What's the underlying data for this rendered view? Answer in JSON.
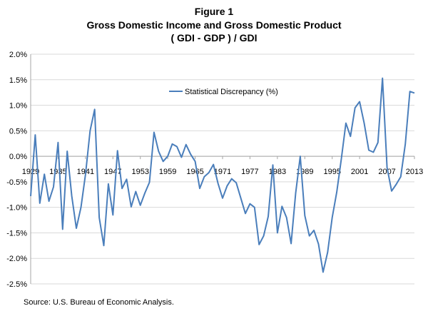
{
  "chart_data": {
    "type": "line",
    "title_lines": [
      "Figure 1",
      "Gross Domestic Income and Gross Domestic Product",
      "( GDI - GDP ) / GDI"
    ],
    "source": "Source: U.S. Bureau of Economic Analysis.",
    "xlabel": "",
    "ylabel": "",
    "ylim": [
      -2.5,
      2.0
    ],
    "xlim": [
      1929,
      2013
    ],
    "y_ticks": [
      "2.0%",
      "1.5%",
      "1.0%",
      "0.5%",
      "0.0%",
      "-0.5%",
      "-1.0%",
      "-1.5%",
      "-2.0%",
      "-2.5%"
    ],
    "y_tick_values": [
      2.0,
      1.5,
      1.0,
      0.5,
      0.0,
      -0.5,
      -1.0,
      -1.5,
      -2.0,
      -2.5
    ],
    "x_ticks": [
      "1929",
      "1935",
      "1941",
      "1947",
      "1953",
      "1959",
      "1965",
      "1971",
      "1977",
      "1983",
      "1989",
      "1995",
      "2001",
      "2007",
      "2013"
    ],
    "x_tick_values": [
      1929,
      1935,
      1941,
      1947,
      1953,
      1959,
      1965,
      1971,
      1977,
      1983,
      1989,
      1995,
      2001,
      2007,
      2013
    ],
    "grid": "horizontal",
    "legend_position": "top-left",
    "line_color": "#4a7ebb",
    "series": [
      {
        "name": "Statistical Discrepancy (%)",
        "x": [
          1929,
          1930,
          1931,
          1932,
          1933,
          1934,
          1935,
          1936,
          1937,
          1938,
          1939,
          1940,
          1941,
          1942,
          1943,
          1944,
          1945,
          1946,
          1947,
          1948,
          1949,
          1950,
          1951,
          1952,
          1953,
          1954,
          1955,
          1956,
          1957,
          1958,
          1959,
          1960,
          1961,
          1962,
          1963,
          1964,
          1965,
          1966,
          1967,
          1968,
          1969,
          1970,
          1971,
          1972,
          1973,
          1974,
          1975,
          1976,
          1977,
          1978,
          1979,
          1980,
          1981,
          1982,
          1983,
          1984,
          1985,
          1986,
          1987,
          1988,
          1989,
          1990,
          1991,
          1992,
          1993,
          1994,
          1995,
          1996,
          1997,
          1998,
          1999,
          2000,
          2001,
          2002,
          2003,
          2004,
          2005,
          2006,
          2007,
          2008,
          2009,
          2010,
          2011,
          2012,
          2013
        ],
        "values": [
          -0.78,
          0.42,
          -0.92,
          -0.35,
          -0.88,
          -0.6,
          0.27,
          -1.43,
          0.1,
          -0.78,
          -1.41,
          -1.0,
          -0.35,
          0.5,
          0.92,
          -1.2,
          -1.75,
          -0.54,
          -1.15,
          0.11,
          -0.63,
          -0.45,
          -0.99,
          -0.69,
          -0.96,
          -0.72,
          -0.51,
          0.47,
          0.1,
          -0.1,
          0.0,
          0.24,
          0.19,
          -0.02,
          0.23,
          0.04,
          -0.1,
          -0.63,
          -0.4,
          -0.32,
          -0.16,
          -0.53,
          -0.82,
          -0.58,
          -0.44,
          -0.52,
          -0.82,
          -1.12,
          -0.93,
          -1.0,
          -1.73,
          -1.56,
          -1.18,
          -0.17,
          -1.5,
          -0.98,
          -1.2,
          -1.71,
          -0.72,
          0.0,
          -1.16,
          -1.56,
          -1.45,
          -1.72,
          -2.27,
          -1.88,
          -1.2,
          -0.7,
          -0.05,
          0.65,
          0.39,
          0.95,
          1.07,
          0.65,
          0.12,
          0.08,
          0.27,
          1.53,
          -0.22,
          -0.68,
          -0.55,
          -0.4,
          0.24,
          1.27,
          1.24
        ]
      }
    ]
  }
}
